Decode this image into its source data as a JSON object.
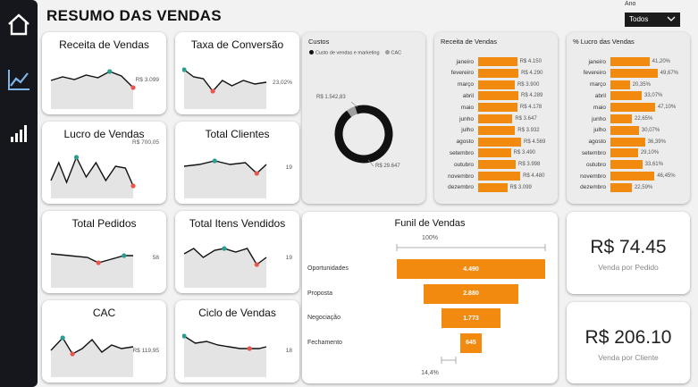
{
  "dashboard": {
    "title": "RESUMO DAS VENDAS"
  },
  "filter": {
    "label": "Ano",
    "value": "Todos"
  },
  "nav": {
    "items": [
      "home-icon",
      "line-chart-icon",
      "bar-chart-icon"
    ]
  },
  "kpis": [
    {
      "title": "Receita de Vendas",
      "value": "R$ 3.099"
    },
    {
      "title": "Taxa de Conversão",
      "value": "23,02%"
    },
    {
      "title": "Lucro de Vendas",
      "value": "R$ 700,05"
    },
    {
      "title": "Total Clientes",
      "value": "19"
    },
    {
      "title": "Total Pedidos",
      "value": "58"
    },
    {
      "title": "Total Itens Vendidos",
      "value": "19"
    },
    {
      "title": "CAC",
      "value": "R$ 119,95"
    },
    {
      "title": "Ciclo de Vendas",
      "value": "18"
    }
  ],
  "costs": {
    "title": "Custos",
    "legend": [
      {
        "name": "Custo de vendas e marketing",
        "color": "#111111"
      },
      {
        "name": "CAC",
        "color": "#9e9e9e"
      }
    ],
    "label_cac": "R$ 1.542,83",
    "label_marketing": "R$ 29.647"
  },
  "colors": {
    "accent": "#f28a10",
    "sparkline": "#111111",
    "high_dot": "#2a9d8f",
    "low_dot": "#e9574c"
  },
  "chart_data": [
    {
      "type": "bar",
      "title": "Receita de Vendas",
      "categories": [
        "janeiro",
        "fevereiro",
        "março",
        "abril",
        "maio",
        "junho",
        "julho",
        "agosto",
        "setembro",
        "outubro",
        "novembro",
        "dezembro"
      ],
      "values": [
        4150,
        4290,
        3900,
        4289,
        4178,
        3647,
        3932,
        4569,
        3490,
        3998,
        4480,
        3099
      ],
      "labels": [
        "R$ 4.150",
        "R$ 4.290",
        "R$ 3.900",
        "R$ 4.289",
        "R$ 4.178",
        "R$ 3.647",
        "R$ 3.932",
        "R$ 4.569",
        "R$ 3.490",
        "R$ 3.998",
        "R$ 4.480",
        "R$ 3.099"
      ]
    },
    {
      "type": "bar",
      "title": "% Lucro das Vendas",
      "categories": [
        "janeiro",
        "fevereiro",
        "março",
        "abril",
        "maio",
        "junho",
        "julho",
        "agosto",
        "setembro",
        "outubro",
        "novembro",
        "dezembro"
      ],
      "values": [
        41.2,
        49.67,
        20.35,
        33.07,
        47.1,
        22.65,
        30.07,
        36.39,
        29.1,
        33.61,
        46.45,
        22.59
      ],
      "labels": [
        "41,20%",
        "49,67%",
        "20,35%",
        "33,07%",
        "47,10%",
        "22,65%",
        "30,07%",
        "36,39%",
        "29,10%",
        "33,61%",
        "46,45%",
        "22,59%"
      ]
    },
    {
      "type": "pie",
      "title": "Custos",
      "categories": [
        "Custo de vendas e marketing",
        "CAC"
      ],
      "values": [
        29647,
        1542.83
      ]
    },
    {
      "type": "bar",
      "title": "Funil de Vendas",
      "categories": [
        "Oportunidades",
        "Proposta",
        "Negociação",
        "Fechamento"
      ],
      "values": [
        4490,
        2880,
        1773,
        645
      ],
      "labels": [
        "4.490",
        "2.880",
        "1.773",
        "645"
      ],
      "top_pct": "100%",
      "bottom_pct": "14,4%"
    }
  ],
  "summary": [
    {
      "value": "R$ 74.45",
      "label": "Venda por Pedido"
    },
    {
      "value": "R$ 206.10",
      "label": "Venda por Cliente"
    }
  ]
}
